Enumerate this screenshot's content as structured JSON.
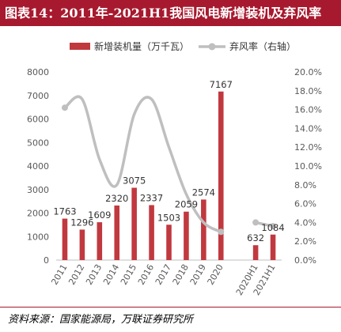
{
  "title": "图表14：2011年-2021H1我国风电新增装机及弃风率",
  "source": "资料来源：国家能源局，万联证券研究所",
  "colors": {
    "accent": "#a6192e",
    "bar": "#c0393f",
    "line": "#bfbfbf"
  },
  "chart_data": {
    "type": "bar",
    "categories": [
      "2011",
      "2012",
      "2013",
      "2014",
      "2015",
      "2016",
      "2017",
      "2018",
      "2019",
      "2020",
      "2020H1",
      "2021H1"
    ],
    "series": [
      {
        "name": "新增装机量（万千瓦）",
        "type": "bar",
        "axis": "left",
        "values": [
          1763,
          1296,
          1609,
          2320,
          3075,
          2337,
          1503,
          2059,
          2574,
          7167,
          632,
          1084
        ],
        "labels": [
          "1763",
          "1296",
          "1609",
          "2320",
          "3075",
          "2337",
          "1503",
          "2059",
          "2574",
          "7167",
          "632",
          "1084"
        ]
      },
      {
        "name": "弃风率（右轴）",
        "type": "line",
        "axis": "right",
        "values": [
          16.2,
          17.1,
          10.7,
          8.0,
          15.5,
          17.1,
          12.0,
          7.0,
          4.0,
          3.0,
          4.0,
          3.6
        ]
      }
    ],
    "y_left": {
      "min": 0,
      "max": 8000,
      "ticks": [
        "0",
        "1000",
        "2000",
        "3000",
        "4000",
        "5000",
        "6000",
        "7000",
        "8000"
      ]
    },
    "y_right": {
      "min": 0,
      "max": 20,
      "ticks": [
        "0.0%",
        "2.0%",
        "4.0%",
        "6.0%",
        "8.0%",
        "10.0%",
        "12.0%",
        "14.0%",
        "16.0%",
        "18.0%",
        "20.0%"
      ]
    },
    "legend_position": "top",
    "grid": false
  }
}
